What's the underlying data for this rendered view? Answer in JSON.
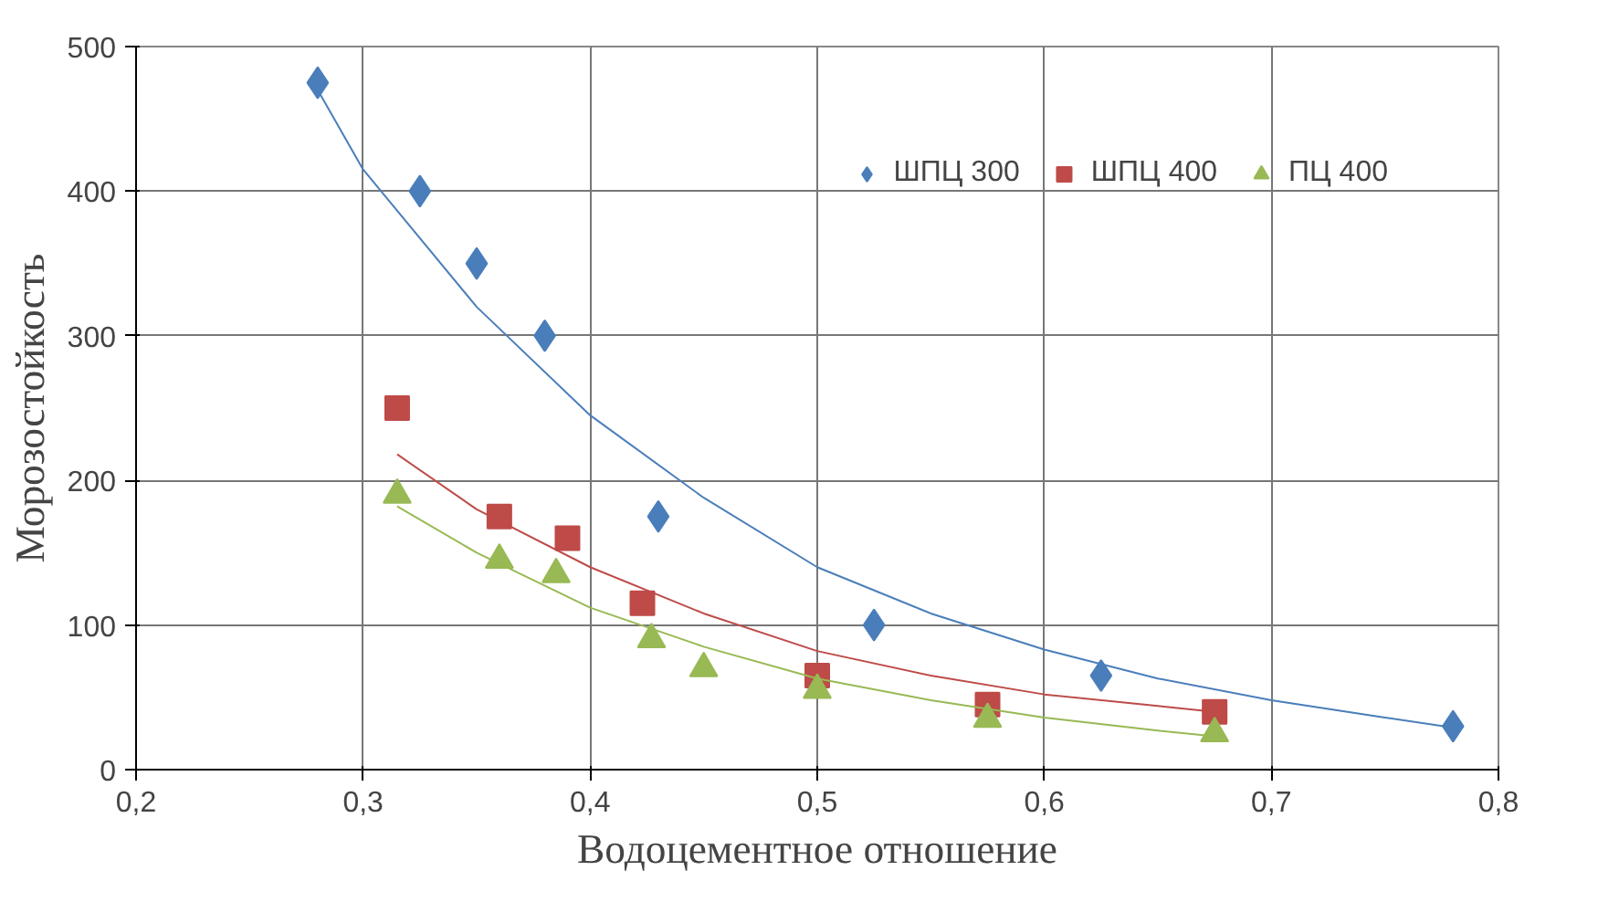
{
  "chart_data": {
    "type": "scatter",
    "xlabel": "Водоцементное отношение",
    "ylabel": "Морозостойкость",
    "xlim": [
      0.2,
      0.8
    ],
    "ylim": [
      0,
      500
    ],
    "xticks": [
      {
        "value": 0.2,
        "label": "0,2"
      },
      {
        "value": 0.3,
        "label": "0,3"
      },
      {
        "value": 0.4,
        "label": "0,4"
      },
      {
        "value": 0.5,
        "label": "0,5"
      },
      {
        "value": 0.6,
        "label": "0,6"
      },
      {
        "value": 0.7,
        "label": "0,7"
      },
      {
        "value": 0.8,
        "label": "0,8"
      }
    ],
    "yticks": [
      0,
      100,
      200,
      300,
      400,
      500
    ],
    "grid": true,
    "legend": "top right",
    "series": [
      {
        "name": "ШПЦ 300",
        "color": "#4a7ebb",
        "marker": "diamond",
        "x": [
          0.28,
          0.325,
          0.35,
          0.38,
          0.43,
          0.525,
          0.625,
          0.78
        ],
        "values": [
          475,
          400,
          350,
          300,
          175,
          100,
          65,
          30
        ]
      },
      {
        "name": "ШПЦ 400",
        "color": "#be4b48",
        "marker": "square",
        "x": [
          0.315,
          0.36,
          0.39,
          0.423,
          0.5,
          0.575,
          0.675
        ],
        "values": [
          250,
          175,
          160,
          115,
          65,
          45,
          40
        ]
      },
      {
        "name": "ПЦ 400",
        "color": "#98b954",
        "marker": "triangle",
        "x": [
          0.315,
          0.36,
          0.385,
          0.427,
          0.45,
          0.5,
          0.575,
          0.675
        ],
        "values": [
          190,
          145,
          135,
          90,
          70,
          55,
          35,
          25
        ]
      },
      {
        "type": "line",
        "color": "#4a7ebb",
        "x": [
          0.28,
          0.3,
          0.35,
          0.4,
          0.45,
          0.5,
          0.55,
          0.6,
          0.65,
          0.7,
          0.75,
          0.78
        ],
        "values": [
          470,
          415,
          320,
          245,
          188,
          140,
          108,
          83,
          63,
          48,
          36,
          29
        ]
      },
      {
        "type": "line",
        "color": "#be4b48",
        "x": [
          0.315,
          0.35,
          0.4,
          0.45,
          0.5,
          0.55,
          0.6,
          0.65,
          0.675
        ],
        "values": [
          218,
          180,
          140,
          108,
          82,
          65,
          52,
          44,
          40
        ]
      },
      {
        "type": "line",
        "color": "#98b954",
        "x": [
          0.315,
          0.35,
          0.4,
          0.45,
          0.5,
          0.55,
          0.6,
          0.65,
          0.675
        ],
        "values": [
          182,
          150,
          112,
          85,
          63,
          48,
          36,
          27,
          23
        ]
      }
    ]
  }
}
